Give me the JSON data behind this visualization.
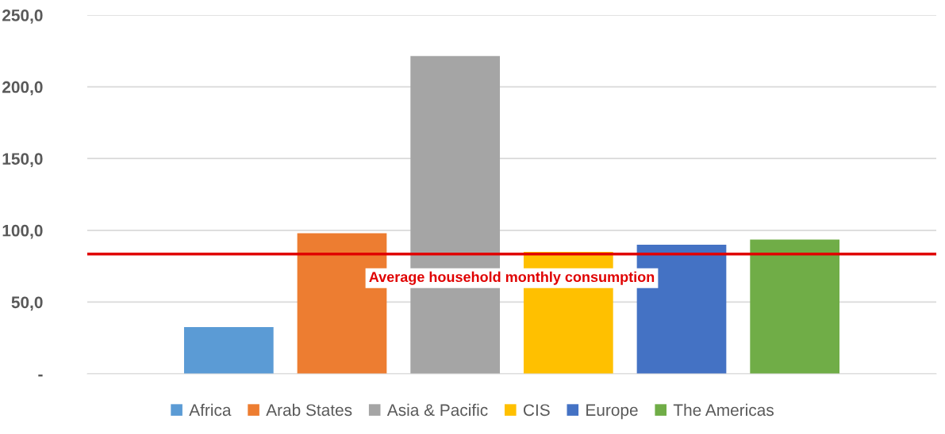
{
  "chart_data": {
    "type": "bar",
    "categories": [
      null
    ],
    "series": [
      {
        "name": "Africa",
        "color": "#5b9bd5",
        "values": [
          32.5
        ]
      },
      {
        "name": "Arab States",
        "color": "#ed7d31",
        "values": [
          98
        ]
      },
      {
        "name": "Asia & Pacific",
        "color": "#a5a5a5",
        "values": [
          221.5
        ]
      },
      {
        "name": "CIS",
        "color": "#ffc000",
        "values": [
          85
        ]
      },
      {
        "name": "Europe",
        "color": "#4472c4",
        "values": [
          90
        ]
      },
      {
        "name": "The Americas",
        "color": "#70ad47",
        "values": [
          93.5
        ]
      }
    ],
    "ylim": [
      0,
      250
    ],
    "yticks": [
      {
        "value": 0,
        "label": "-"
      },
      {
        "value": 50,
        "label": "50,0"
      },
      {
        "value": 100,
        "label": "100,0"
      },
      {
        "value": 150,
        "label": "150,0"
      },
      {
        "value": 200,
        "label": "200,0"
      },
      {
        "value": 250,
        "label": "250,0"
      }
    ],
    "ref_lines": [
      {
        "axis": "y",
        "value": 83.5,
        "label": "Average household monthly consumption",
        "color": "#e00000"
      }
    ],
    "grid": "y",
    "legend": "bottom"
  }
}
